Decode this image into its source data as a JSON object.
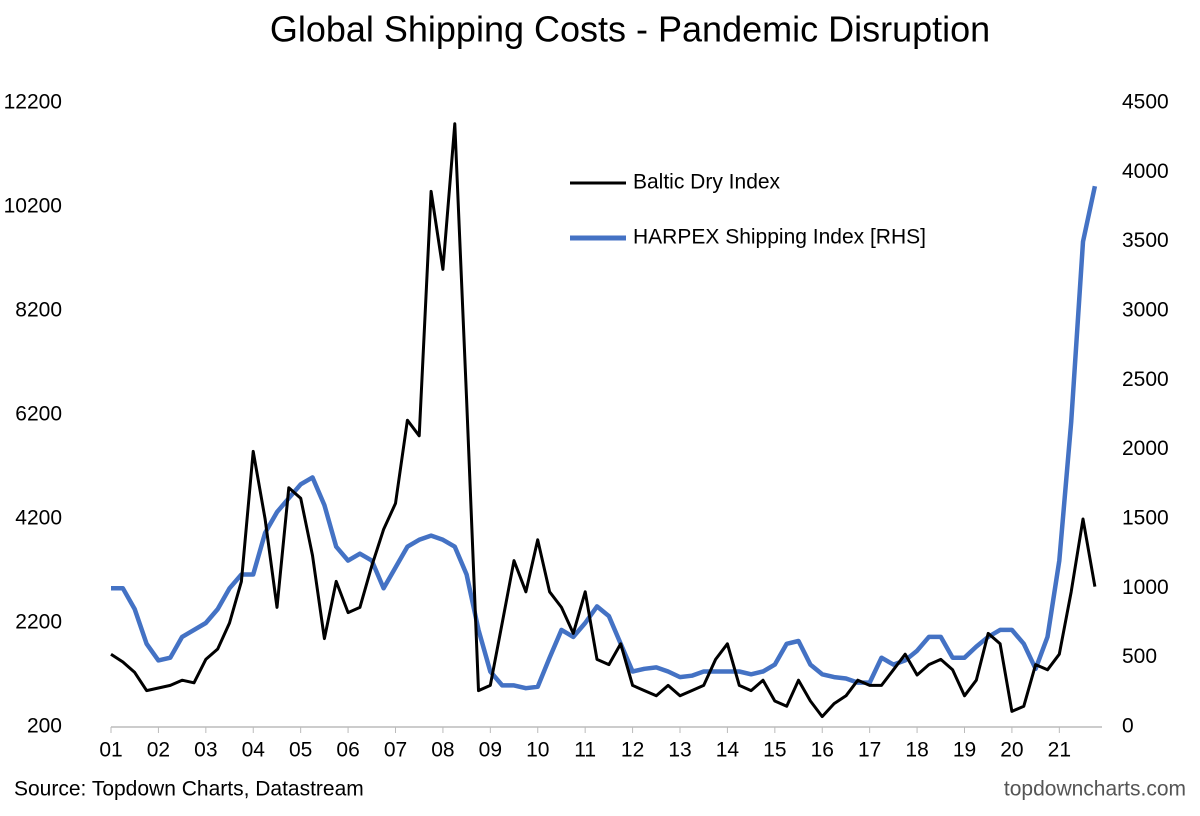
{
  "chart_data": {
    "type": "line",
    "title": "Global Shipping Costs - Pandemic Disruption",
    "source": "Source: Topdown Charts, Datastream",
    "watermark": "topdowncharts.com",
    "x": [
      2001,
      2001.25,
      2001.5,
      2001.75,
      2002,
      2002.25,
      2002.5,
      2002.75,
      2003,
      2003.25,
      2003.5,
      2003.75,
      2004,
      2004.25,
      2004.5,
      2004.75,
      2005,
      2005.25,
      2005.5,
      2005.75,
      2006,
      2006.25,
      2006.5,
      2006.75,
      2007,
      2007.25,
      2007.5,
      2007.75,
      2008,
      2008.25,
      2008.5,
      2008.75,
      2009,
      2009.25,
      2009.5,
      2009.75,
      2010,
      2010.25,
      2010.5,
      2010.75,
      2011,
      2011.25,
      2011.5,
      2011.75,
      2012,
      2012.25,
      2012.5,
      2012.75,
      2013,
      2013.25,
      2013.5,
      2013.75,
      2014,
      2014.25,
      2014.5,
      2014.75,
      2015,
      2015.25,
      2015.5,
      2015.75,
      2016,
      2016.25,
      2016.5,
      2016.75,
      2017,
      2017.25,
      2017.5,
      2017.75,
      2018,
      2018.25,
      2018.5,
      2018.75,
      2019,
      2019.25,
      2019.5,
      2019.75,
      2020,
      2020.25,
      2020.5,
      2020.75,
      2021,
      2021.25,
      2021.5,
      2021.75
    ],
    "series": [
      {
        "name": "Baltic Dry Index",
        "color": "#000000",
        "values": [
          1600,
          1450,
          1250,
          900,
          950,
          1000,
          1100,
          1050,
          1500,
          1700,
          2200,
          3000,
          5500,
          4200,
          2500,
          4800,
          4600,
          3500,
          1900,
          3000,
          2400,
          2500,
          3300,
          4000,
          4500,
          6100,
          5800,
          10500,
          9000,
          11800,
          6500,
          900,
          1000,
          2200,
          3400,
          2800,
          3800,
          2800,
          2500,
          2000,
          2800,
          1500,
          1400,
          1800,
          1000,
          900,
          800,
          1000,
          800,
          900,
          1000,
          1500,
          1800,
          1000,
          900,
          1100,
          700,
          600,
          1100,
          700,
          400,
          650,
          800,
          1100,
          1000,
          1000,
          1300,
          1600,
          1200,
          1400,
          1500,
          1300,
          800,
          1100,
          2000,
          1800,
          500,
          600,
          1400,
          1300,
          1600,
          2800,
          4200,
          2900
        ]
      },
      {
        "name": "HARPEX Shipping Index [RHS]",
        "color": "#4472c4",
        "axis": "y2",
        "values": [
          1000,
          1000,
          850,
          600,
          480,
          500,
          650,
          700,
          750,
          850,
          1000,
          1100,
          1100,
          1400,
          1550,
          1650,
          1750,
          1800,
          1600,
          1300,
          1200,
          1250,
          1200,
          1000,
          1150,
          1300,
          1350,
          1380,
          1350,
          1300,
          1100,
          700,
          400,
          300,
          300,
          280,
          290,
          500,
          700,
          650,
          750,
          870,
          800,
          600,
          400,
          420,
          430,
          400,
          360,
          370,
          400,
          400,
          400,
          400,
          380,
          400,
          450,
          600,
          620,
          450,
          380,
          360,
          350,
          320,
          320,
          500,
          450,
          480,
          550,
          650,
          650,
          500,
          500,
          580,
          650,
          700,
          700,
          600,
          420,
          650,
          1200,
          2200,
          3500,
          3900
        ]
      }
    ],
    "xlim": [
      2001,
      2021.9
    ],
    "xticks": [
      {
        "value": 2001,
        "label": "01"
      },
      {
        "value": 2002,
        "label": "02"
      },
      {
        "value": 2003,
        "label": "03"
      },
      {
        "value": 2004,
        "label": "04"
      },
      {
        "value": 2005,
        "label": "05"
      },
      {
        "value": 2006,
        "label": "06"
      },
      {
        "value": 2007,
        "label": "07"
      },
      {
        "value": 2008,
        "label": "08"
      },
      {
        "value": 2009,
        "label": "09"
      },
      {
        "value": 2010,
        "label": "10"
      },
      {
        "value": 2011,
        "label": "11"
      },
      {
        "value": 2012,
        "label": "12"
      },
      {
        "value": 2013,
        "label": "13"
      },
      {
        "value": 2014,
        "label": "14"
      },
      {
        "value": 2015,
        "label": "15"
      },
      {
        "value": 2016,
        "label": "16"
      },
      {
        "value": 2017,
        "label": "17"
      },
      {
        "value": 2018,
        "label": "18"
      },
      {
        "value": 2019,
        "label": "19"
      },
      {
        "value": 2020,
        "label": "20"
      },
      {
        "value": 2021,
        "label": "21"
      }
    ],
    "ylim": [
      200,
      12200
    ],
    "yticks": [
      200,
      2200,
      4200,
      6200,
      8200,
      10200,
      12200
    ],
    "y2lim": [
      0,
      4500
    ],
    "y2ticks": [
      0,
      500,
      1000,
      1500,
      2000,
      2500,
      3000,
      3500,
      4000,
      4500
    ],
    "legend": "top-right"
  }
}
